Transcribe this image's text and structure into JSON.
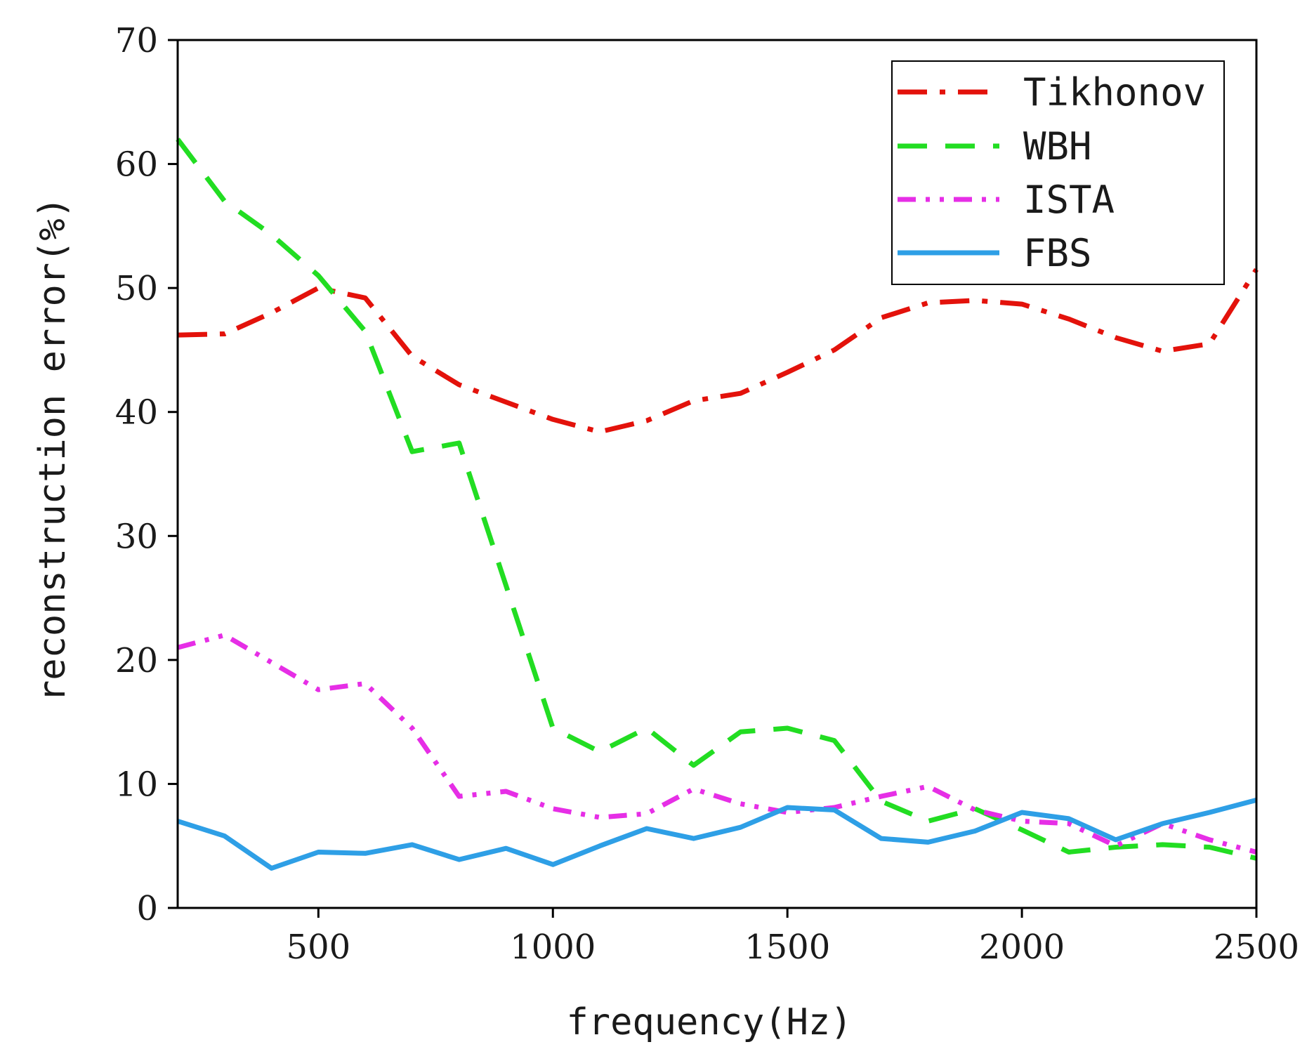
{
  "chart_data": {
    "type": "line",
    "title": "",
    "xlabel": "frequency(Hz)",
    "ylabel": "reconstruction error(%)",
    "xlim": [
      200,
      2500
    ],
    "ylim": [
      0,
      70
    ],
    "xticks": [
      500,
      1000,
      1500,
      2000,
      2500
    ],
    "yticks": [
      0,
      10,
      20,
      30,
      40,
      50,
      60,
      70
    ],
    "grid": false,
    "legend_position": "top-right",
    "x": [
      200,
      300,
      400,
      500,
      600,
      700,
      800,
      900,
      1000,
      1100,
      1200,
      1300,
      1400,
      1500,
      1600,
      1700,
      1800,
      1900,
      2000,
      2100,
      2200,
      2300,
      2400,
      2500
    ],
    "series": [
      {
        "name": "Tikhonov",
        "color": "#e3120b",
        "dash": "dashdot",
        "values": [
          46.2,
          46.3,
          48.0,
          50.0,
          49.2,
          44.5,
          42.2,
          40.8,
          39.4,
          38.4,
          39.3,
          40.9,
          41.5,
          43.2,
          45.0,
          47.6,
          48.8,
          49.0,
          48.7,
          47.5,
          46.0,
          44.9,
          45.5,
          51.5
        ]
      },
      {
        "name": "WBH",
        "color": "#22dd22",
        "dash": "dash",
        "values": [
          62.0,
          57.0,
          54.3,
          51.0,
          46.5,
          36.8,
          37.5,
          26.0,
          14.5,
          12.6,
          14.5,
          11.5,
          14.2,
          14.5,
          13.5,
          8.6,
          7.0,
          8.0,
          6.3,
          4.5,
          4.9,
          5.1,
          4.9,
          4.0
        ]
      },
      {
        "name": "ISTA",
        "color": "#e62ee6",
        "dash": "dashdotdot",
        "values": [
          21.0,
          22.0,
          19.8,
          17.6,
          18.1,
          14.5,
          9.0,
          9.4,
          8.0,
          7.3,
          7.6,
          9.6,
          8.4,
          7.7,
          8.1,
          9.0,
          9.8,
          7.9,
          7.0,
          6.8,
          5.0,
          6.8,
          5.5,
          4.5
        ]
      },
      {
        "name": "FBS",
        "color": "#2e9fe6",
        "dash": "solid",
        "values": [
          7.0,
          5.8,
          3.2,
          4.5,
          4.4,
          5.1,
          3.9,
          4.8,
          3.5,
          5.0,
          6.4,
          5.6,
          6.5,
          8.1,
          7.9,
          5.6,
          5.3,
          6.2,
          7.7,
          7.2,
          5.5,
          6.8,
          7.7,
          8.7
        ]
      }
    ]
  }
}
